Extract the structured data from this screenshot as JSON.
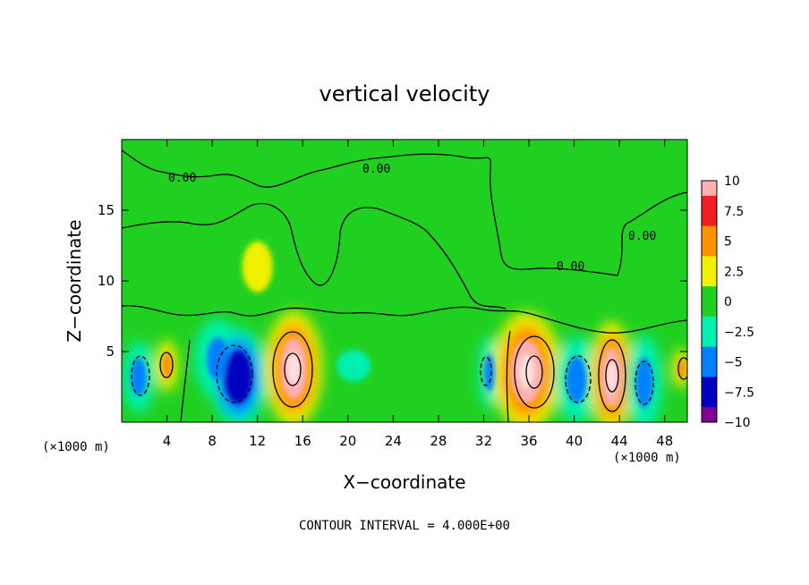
{
  "chart_data": {
    "type": "heatmap",
    "title": "vertical velocity",
    "xlabel": "X−coordinate",
    "ylabel": "Z−coordinate",
    "x_unit": "(×1000 m)",
    "x_unit_right": "(×1000 m)",
    "footer": "CONTOUR INTERVAL = 4.000E+00",
    "xlim": [
      0,
      50
    ],
    "ylim": [
      0,
      20
    ],
    "x_ticks": [
      4,
      8,
      12,
      16,
      20,
      24,
      28,
      32,
      36,
      40,
      44,
      48
    ],
    "x_tick_labels": [
      "4",
      "8",
      "12",
      "16",
      "20",
      "24",
      "28",
      "32",
      "36",
      "40",
      "44",
      "48"
    ],
    "y_ticks": [
      5,
      10,
      15
    ],
    "y_tick_labels": [
      "5",
      "10",
      "15"
    ],
    "colorbar": {
      "min": -10,
      "max": 10,
      "ticks": [
        10,
        7.5,
        5,
        2.5,
        0,
        -2.5,
        -5,
        -7.5,
        -10
      ],
      "tick_labels": [
        "10",
        "7.5",
        "5",
        "2.5",
        "0",
        "−2.5",
        "−5",
        "−7.5",
        "−10"
      ],
      "colors": [
        "#ffb0b0",
        "#f02020",
        "#ff9000",
        "#f0f000",
        "#20d020",
        "#00f0b0",
        "#0080ff",
        "#0000c0",
        "#800090"
      ]
    },
    "contour_label": "0.00",
    "cells": [
      {
        "x": 1.5,
        "z": 3.2,
        "w": 0.9,
        "h": 1.8,
        "v": -6
      },
      {
        "x": 4.0,
        "z": 4.0,
        "w": 0.6,
        "h": 1.3,
        "v": 5
      },
      {
        "x": 8.5,
        "z": 4.5,
        "w": 1.3,
        "h": 2.0,
        "v": -6
      },
      {
        "x": 10.3,
        "z": 3.2,
        "w": 1.6,
        "h": 2.5,
        "v": -7
      },
      {
        "x": 12.0,
        "z": 11.0,
        "w": 1.8,
        "h": 2.4,
        "v": 2.8
      },
      {
        "x": 15.2,
        "z": 3.8,
        "w": 1.6,
        "h": 2.9,
        "v": 9
      },
      {
        "x": 20.5,
        "z": 4.0,
        "w": 2.0,
        "h": 1.5,
        "v": -3
      },
      {
        "x": 32.5,
        "z": 3.5,
        "w": 0.6,
        "h": 1.8,
        "v": -4
      },
      {
        "x": 35.8,
        "z": 3.6,
        "w": 1.9,
        "h": 3.0,
        "v": 9
      },
      {
        "x": 40.2,
        "z": 3.0,
        "w": 1.2,
        "h": 2.2,
        "v": -6
      },
      {
        "x": 43.3,
        "z": 3.2,
        "w": 1.2,
        "h": 2.8,
        "v": 9
      },
      {
        "x": 46.2,
        "z": 2.8,
        "w": 1.0,
        "h": 2.4,
        "v": -6
      },
      {
        "x": 49.5,
        "z": 3.8,
        "w": 0.5,
        "h": 1.0,
        "v": 5
      }
    ],
    "grid": false,
    "legend": "colorbar right"
  }
}
